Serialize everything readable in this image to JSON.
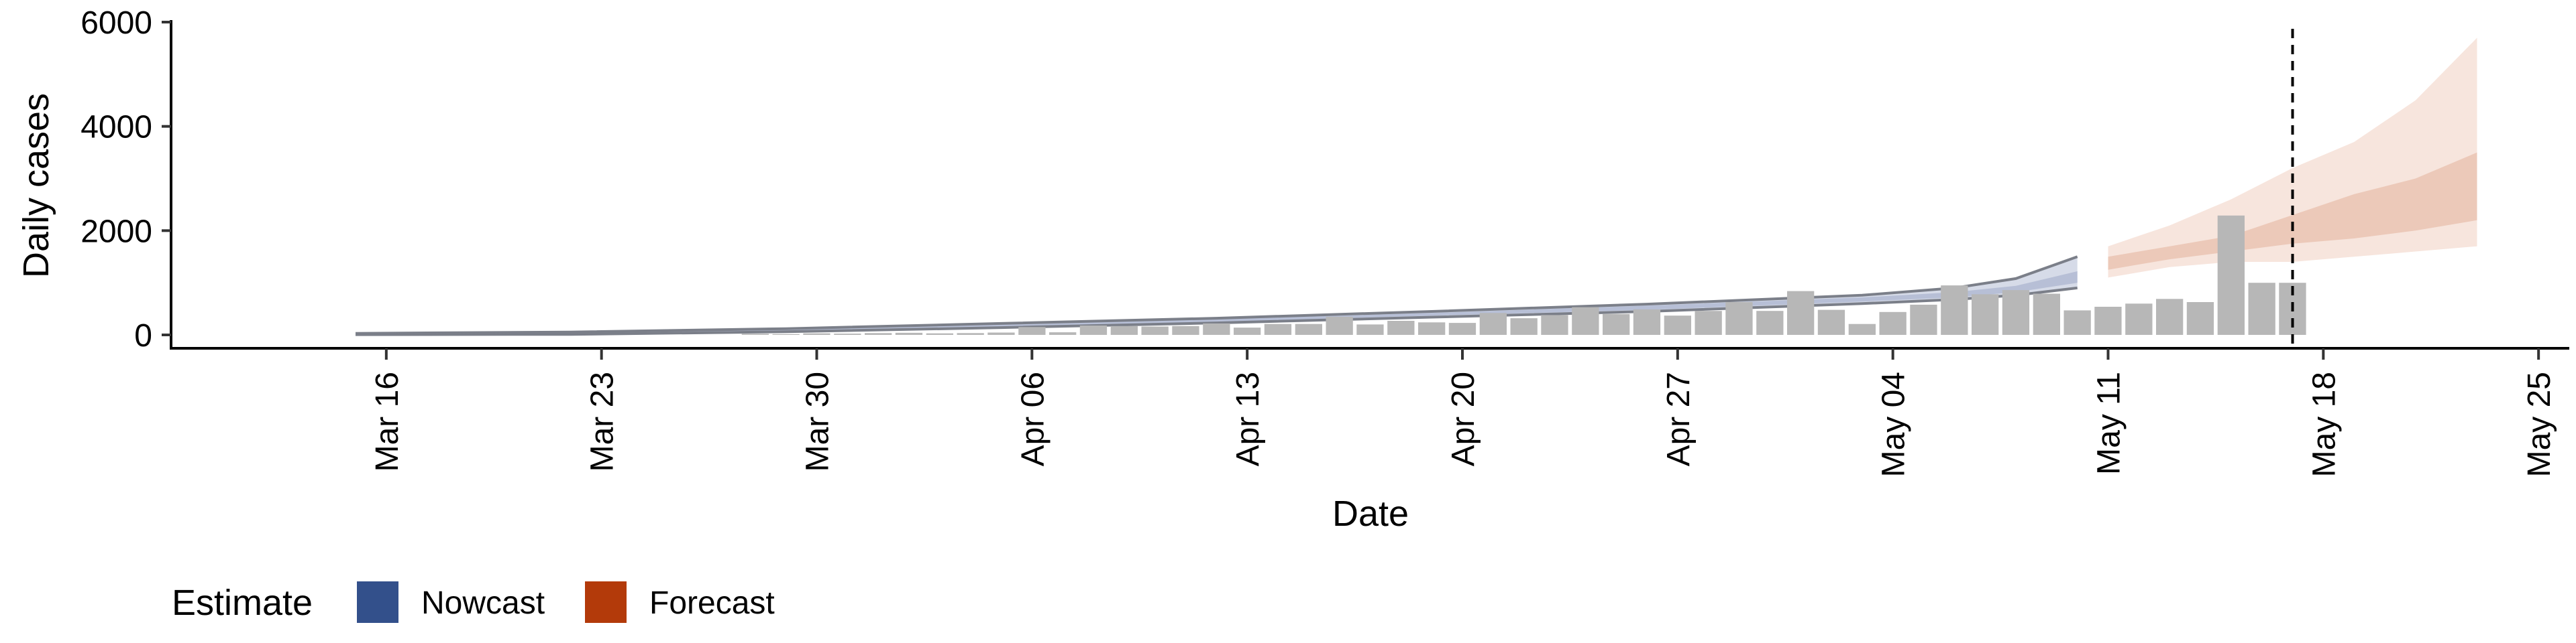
{
  "chart_data": {
    "type": "bar",
    "xlabel": "Date",
    "ylabel": "Daily cases",
    "ylim": [
      -200,
      6000
    ],
    "xlim": [
      "2020-03-09",
      "2020-05-26"
    ],
    "y_ticks": [
      "0",
      "2000",
      "4000",
      "6000"
    ],
    "x_ticks": [
      "Mar 16",
      "Mar 23",
      "Mar 30",
      "Apr 06",
      "Apr 13",
      "Apr 20",
      "Apr 27",
      "May 04",
      "May 11",
      "May 18",
      "May 25"
    ],
    "x_tick_dates": [
      "2020-03-16",
      "2020-03-23",
      "2020-03-30",
      "2020-04-06",
      "2020-04-13",
      "2020-04-20",
      "2020-04-27",
      "2020-05-04",
      "2020-05-11",
      "2020-05-18",
      "2020-05-25"
    ],
    "grid": false,
    "cases": {
      "dates": [
        "2020-03-28",
        "2020-03-29",
        "2020-03-30",
        "2020-03-31",
        "2020-04-01",
        "2020-04-02",
        "2020-04-03",
        "2020-04-04",
        "2020-04-05",
        "2020-04-06",
        "2020-04-07",
        "2020-04-08",
        "2020-04-09",
        "2020-04-10",
        "2020-04-11",
        "2020-04-12",
        "2020-04-13",
        "2020-04-14",
        "2020-04-15",
        "2020-04-16",
        "2020-04-17",
        "2020-04-18",
        "2020-04-19",
        "2020-04-20",
        "2020-04-21",
        "2020-04-22",
        "2020-04-23",
        "2020-04-24",
        "2020-04-25",
        "2020-04-26",
        "2020-04-27",
        "2020-04-28",
        "2020-04-29",
        "2020-04-30",
        "2020-05-01",
        "2020-05-02",
        "2020-05-03",
        "2020-05-04",
        "2020-05-05",
        "2020-05-06",
        "2020-05-07",
        "2020-05-08",
        "2020-05-09",
        "2020-05-10",
        "2020-05-11",
        "2020-05-12",
        "2020-05-13",
        "2020-05-14",
        "2020-05-15",
        "2020-05-16",
        "2020-05-17"
      ],
      "values": [
        20,
        15,
        30,
        25,
        35,
        40,
        30,
        35,
        45,
        150,
        50,
        180,
        170,
        160,
        170,
        220,
        140,
        210,
        210,
        350,
        200,
        270,
        240,
        230,
        420,
        320,
        380,
        530,
        400,
        490,
        370,
        460,
        630,
        460,
        840,
        480,
        210,
        440,
        580,
        950,
        780,
        860,
        790,
        470,
        540,
        600,
        690,
        630,
        2290,
        1000,
        1000
      ]
    },
    "nowcast": {
      "dates": [
        "2020-03-15",
        "2020-03-22",
        "2020-03-29",
        "2020-04-05",
        "2020-04-12",
        "2020-04-19",
        "2020-04-26",
        "2020-05-03",
        "2020-05-06",
        "2020-05-08",
        "2020-05-10"
      ],
      "outer_upper": [
        30,
        55,
        120,
        220,
        320,
        450,
        590,
        760,
        900,
        1080,
        1500
      ],
      "outer_lower": [
        5,
        10,
        60,
        140,
        230,
        340,
        450,
        600,
        680,
        760,
        900
      ],
      "inner_upper": [
        25,
        45,
        100,
        200,
        300,
        420,
        560,
        720,
        820,
        940,
        1220
      ],
      "inner_lower": [
        10,
        20,
        75,
        160,
        250,
        370,
        480,
        640,
        720,
        820,
        1000
      ]
    },
    "forecast": {
      "dates": [
        "2020-05-11",
        "2020-05-13",
        "2020-05-15",
        "2020-05-17",
        "2020-05-19",
        "2020-05-21",
        "2020-05-23"
      ],
      "outer_upper": [
        1700,
        2100,
        2600,
        3200,
        3700,
        4500,
        5700
      ],
      "outer_lower": [
        1100,
        1300,
        1400,
        1400,
        1500,
        1600,
        1700
      ],
      "inner_upper": [
        1500,
        1700,
        1900,
        2300,
        2700,
        3000,
        3500
      ],
      "inner_lower": [
        1250,
        1450,
        1600,
        1750,
        1850,
        2000,
        2200
      ]
    },
    "cutoff_date": "2020-05-17",
    "legend": {
      "title": "Estimate",
      "placement": "bottom-left",
      "items": [
        {
          "label": "Nowcast",
          "color": "#33508b"
        },
        {
          "label": "Forecast",
          "color": "#b33a0a"
        }
      ]
    },
    "colors": {
      "bars": "#b7b7b7",
      "nowcast_outer": "#d6dbe8",
      "nowcast_inner": "#b7bfd6",
      "nowcast_line": "#7b7f89",
      "forecast_outer": "#f7e5dd",
      "forecast_inner": "#ecc9b9"
    }
  }
}
